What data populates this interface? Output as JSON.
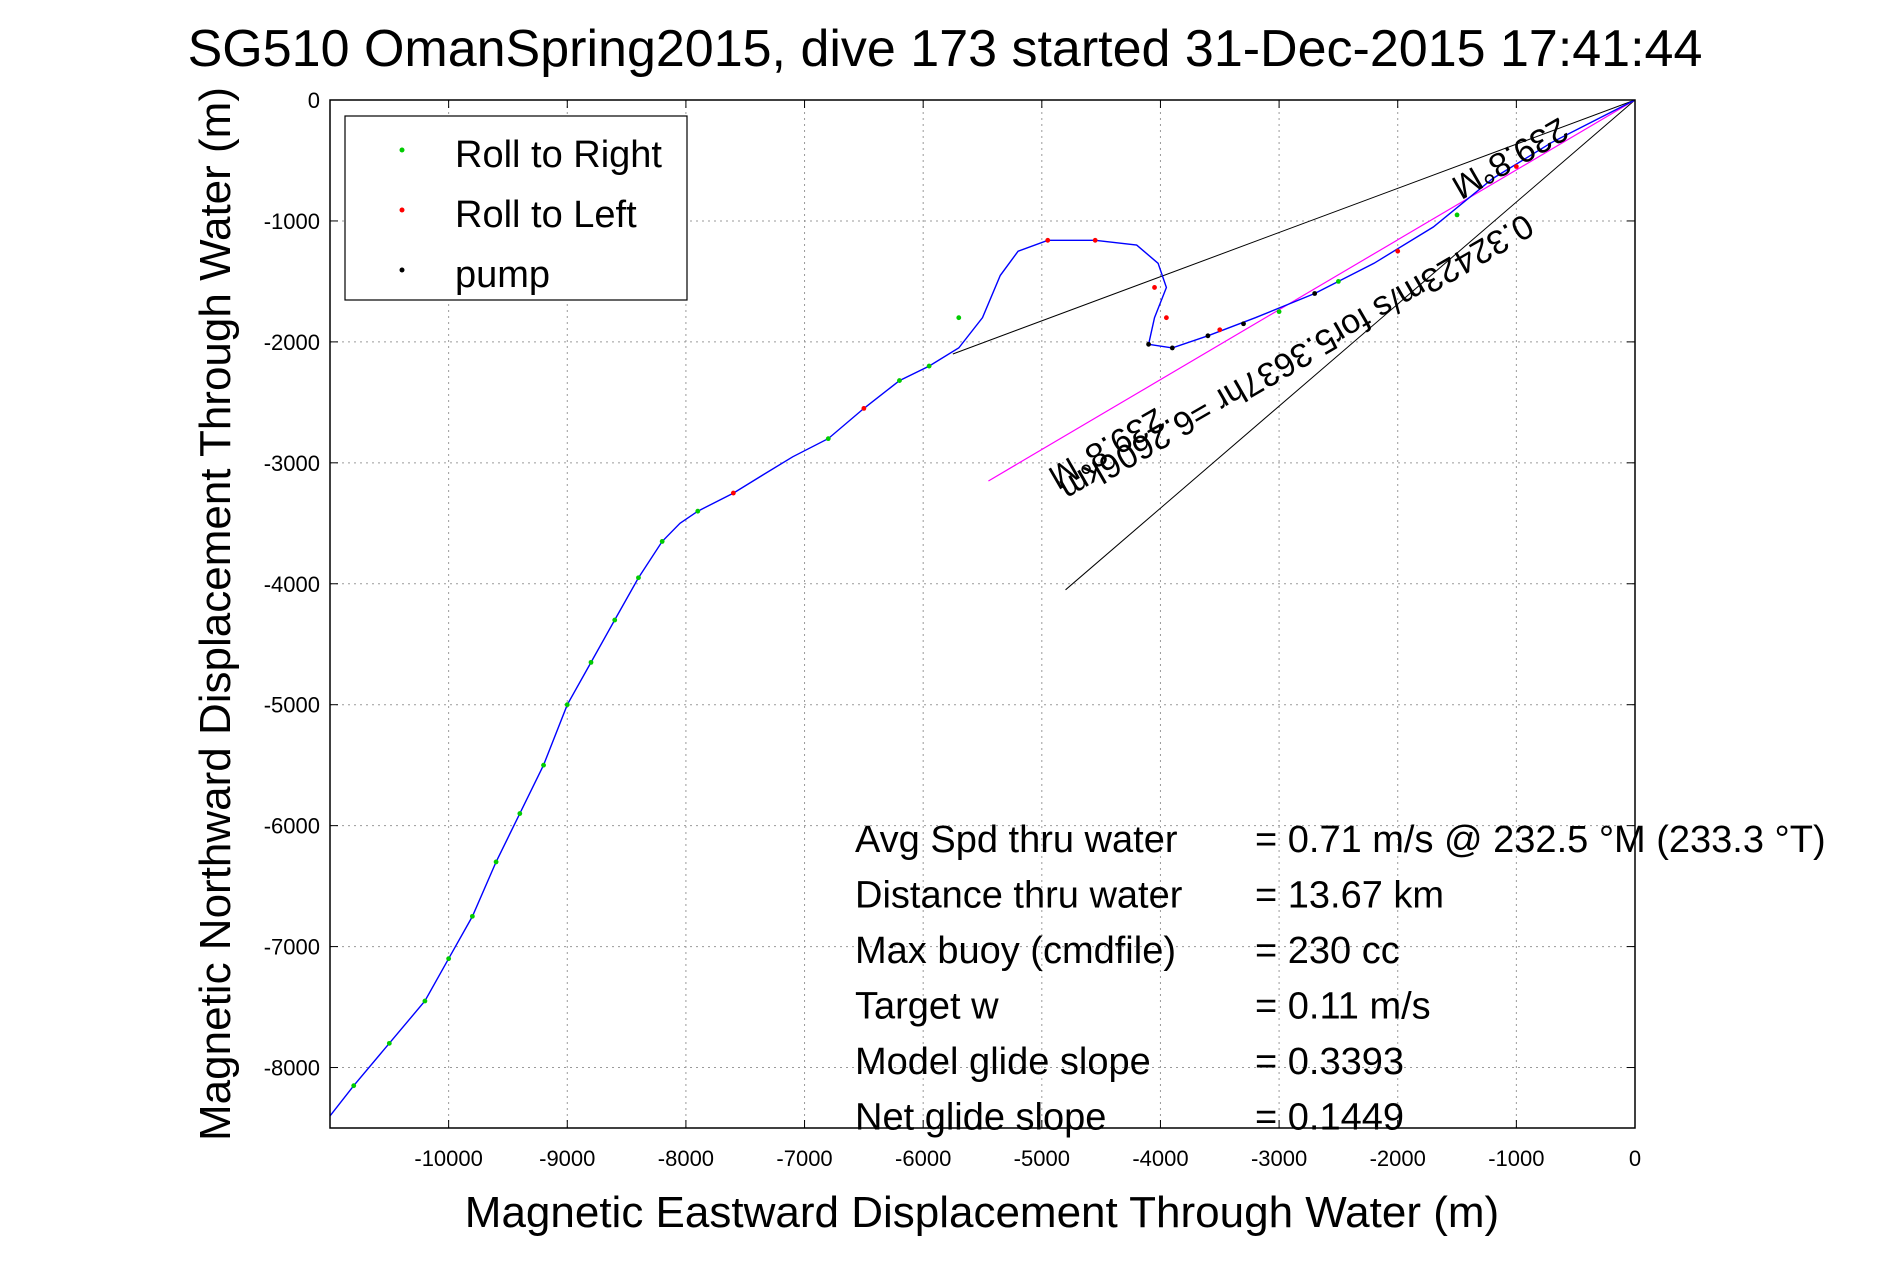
{
  "chart_data": {
    "type": "line",
    "title": "SG510 OmanSpring2015, dive 173 started 31-Dec-2015 17:41:44",
    "xlabel": "Magnetic Eastward Displacement Through Water (m)",
    "ylabel": "Magnetic Northward Displacement Through Water (m)",
    "xlim": [
      -11000,
      0
    ],
    "ylim": [
      -8500,
      0
    ],
    "x_ticks": [
      -10000,
      -9000,
      -8000,
      -7000,
      -6000,
      -5000,
      -4000,
      -3000,
      -2000,
      -1000,
      0
    ],
    "y_ticks": [
      0,
      -1000,
      -2000,
      -3000,
      -4000,
      -5000,
      -6000,
      -7000,
      -8000
    ],
    "grid": true,
    "legend_position": "top-left",
    "legend": [
      {
        "label": "Roll to Right",
        "color": "#00cc00"
      },
      {
        "label": "Roll to Left",
        "color": "#ff0000"
      },
      {
        "label": "pump",
        "color": "#000000"
      }
    ],
    "track": {
      "color": "#0000ff",
      "x": [
        0,
        -300,
        -700,
        -1200,
        -1700,
        -2200,
        -2700,
        -3200,
        -3600,
        -3900,
        -4100,
        -4050,
        -3950,
        -4020,
        -4200,
        -4550,
        -4950,
        -5200,
        -5350,
        -5500,
        -5700,
        -5950,
        -6200,
        -6500,
        -6800,
        -7100,
        -7350,
        -7600,
        -7900,
        -8050,
        -8200,
        -8400,
        -8600,
        -8800,
        -9000,
        -9200,
        -9400,
        -9600,
        -9800,
        -10000,
        -10200,
        -10500,
        -10800,
        -11000
      ],
      "y": [
        0,
        -150,
        -350,
        -650,
        -1050,
        -1350,
        -1600,
        -1800,
        -1950,
        -2050,
        -2020,
        -1800,
        -1550,
        -1350,
        -1200,
        -1160,
        -1160,
        -1250,
        -1450,
        -1800,
        -2050,
        -2200,
        -2320,
        -2550,
        -2800,
        -2950,
        -3100,
        -3250,
        -3400,
        -3500,
        -3650,
        -3950,
        -4300,
        -4650,
        -5000,
        -5500,
        -5900,
        -6300,
        -6750,
        -7100,
        -7450,
        -7800,
        -8150,
        -8400
      ]
    },
    "markers": {
      "roll_right": {
        "color": "#00cc00",
        "x": [
          -5700,
          -5950,
          -6200,
          -6800,
          -7900,
          -8200,
          -8400,
          -8600,
          -8800,
          -9000,
          -9200,
          -9400,
          -9600,
          -9800,
          -10000,
          -10200,
          -10500,
          -10800,
          -1500,
          -2500,
          -3000
        ],
        "y": [
          -1800,
          -2200,
          -2320,
          -2800,
          -3400,
          -3650,
          -3950,
          -4300,
          -4650,
          -5000,
          -5500,
          -5900,
          -6300,
          -6750,
          -7100,
          -7450,
          -7800,
          -8150,
          -950,
          -1500,
          -1750
        ]
      },
      "roll_left": {
        "color": "#ff0000",
        "x": [
          -4950,
          -4550,
          -4050,
          -3950,
          -7600,
          -6500,
          -1000,
          -2000,
          -3500
        ],
        "y": [
          -1160,
          -1160,
          -1550,
          -1800,
          -3250,
          -2550,
          -550,
          -1250,
          -1900
        ]
      },
      "pump": {
        "color": "#000000",
        "x": [
          -3600,
          -3900,
          -4100,
          -3300,
          -2700
        ],
        "y": [
          -1950,
          -2050,
          -2020,
          -1850,
          -1600
        ]
      }
    },
    "heading_lines": [
      {
        "x": [
          0,
          -5750
        ],
        "y": [
          0,
          -2100
        ]
      },
      {
        "x": [
          0,
          -4800
        ],
        "y": [
          0,
          -4050
        ]
      }
    ],
    "intended_course": {
      "color": "#ff00ff",
      "x": [
        0,
        -5450
      ],
      "y": [
        0,
        -3150
      ]
    },
    "annotations": [
      {
        "text": "0.32423m/s for5.3637hr =6.2606km",
        "x": -2900,
        "y": -2050,
        "rotation": 150
      },
      {
        "text": "239.8°M",
        "x": -1100,
        "y": -400,
        "rotation": 150
      },
      {
        "text": "239.8°M",
        "x": -4500,
        "y": -2800,
        "rotation": 150
      }
    ],
    "stats": [
      {
        "label": "Avg Spd thru water",
        "value": "=  0.71 m/s @ 232.5 °M (233.3 °T)"
      },
      {
        "label": "Distance thru water",
        "value": "= 13.67 km"
      },
      {
        "label": "Max buoy (cmdfile)",
        "value": "= 230 cc"
      },
      {
        "label": "Target w",
        "value": "= 0.11 m/s"
      },
      {
        "label": "Model glide slope",
        "value": "= 0.3393"
      },
      {
        "label": "Net glide slope",
        "value": "= 0.1449"
      }
    ]
  }
}
